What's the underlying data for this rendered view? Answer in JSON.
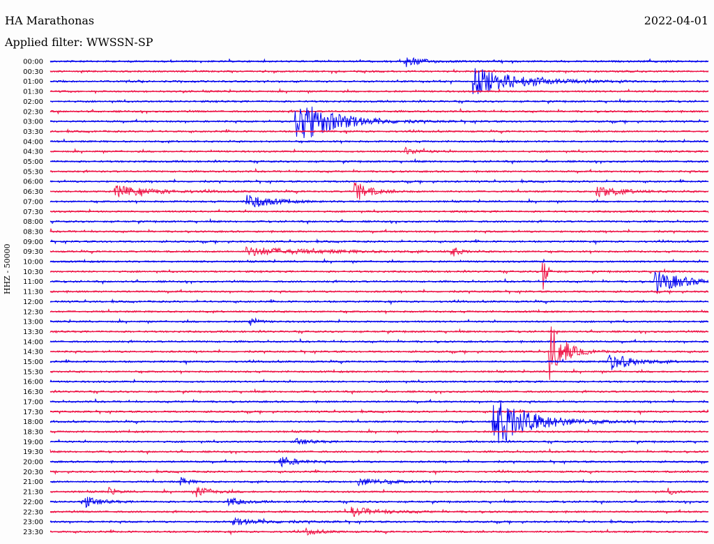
{
  "header": {
    "station": "HA Marathonas",
    "date": "2022-04-01",
    "filter": "Applied filter: WWSSN-SP"
  },
  "chart_data": {
    "type": "line",
    "subtype": "helicorder",
    "ylabel": "HHZ - 50000",
    "colors": {
      "even_rows": "#0000ee",
      "odd_rows": "#ee1144",
      "background": "#fdfdfd"
    },
    "rows": [
      "00:00",
      "00:30",
      "01:00",
      "01:30",
      "02:00",
      "02:30",
      "03:00",
      "03:30",
      "04:00",
      "04:30",
      "05:00",
      "05:30",
      "06:00",
      "06:30",
      "07:00",
      "07:30",
      "08:00",
      "08:30",
      "09:00",
      "09:30",
      "10:00",
      "10:30",
      "11:00",
      "11:30",
      "12:00",
      "12:30",
      "13:00",
      "13:30",
      "14:00",
      "14:30",
      "15:00",
      "15:30",
      "16:00",
      "16:30",
      "17:00",
      "17:30",
      "18:00",
      "18:30",
      "19:00",
      "19:30",
      "20:00",
      "20:30",
      "21:00",
      "21:30",
      "22:00",
      "22:30",
      "23:00",
      "23:30"
    ],
    "x_range_minutes": [
      0,
      30
    ],
    "events": [
      {
        "row": 0,
        "t": 0.54,
        "amp": 9,
        "dur": 0.02
      },
      {
        "row": 2,
        "t": 0.645,
        "amp": 20,
        "dur": 0.06
      },
      {
        "row": 6,
        "t": 0.375,
        "amp": 35,
        "dur": 0.05
      },
      {
        "row": 9,
        "t": 0.54,
        "amp": 5,
        "dur": 0.02
      },
      {
        "row": 13,
        "t": 0.1,
        "amp": 8,
        "dur": 0.05
      },
      {
        "row": 13,
        "t": 0.465,
        "amp": 14,
        "dur": 0.02
      },
      {
        "row": 13,
        "t": 0.83,
        "amp": 10,
        "dur": 0.03
      },
      {
        "row": 14,
        "t": 0.3,
        "amp": 12,
        "dur": 0.03
      },
      {
        "row": 19,
        "t": 0.3,
        "amp": 6,
        "dur": 0.09
      },
      {
        "row": 19,
        "t": 0.61,
        "amp": 9,
        "dur": 0.01
      },
      {
        "row": 21,
        "t": 0.75,
        "amp": 25,
        "dur": 0.005
      },
      {
        "row": 22,
        "t": 0.92,
        "amp": 16,
        "dur": 0.04
      },
      {
        "row": 26,
        "t": 0.305,
        "amp": 6,
        "dur": 0.01
      },
      {
        "row": 29,
        "t": 0.76,
        "amp": 40,
        "dur": 0.02
      },
      {
        "row": 30,
        "t": 0.85,
        "amp": 14,
        "dur": 0.03
      },
      {
        "row": 36,
        "t": 0.675,
        "amp": 38,
        "dur": 0.05
      },
      {
        "row": 38,
        "t": 0.375,
        "amp": 4,
        "dur": 0.02
      },
      {
        "row": 40,
        "t": 0.35,
        "amp": 9,
        "dur": 0.02
      },
      {
        "row": 42,
        "t": 0.2,
        "amp": 6,
        "dur": 0.01
      },
      {
        "row": 42,
        "t": 0.47,
        "amp": 5,
        "dur": 0.04
      },
      {
        "row": 43,
        "t": 0.09,
        "amp": 5,
        "dur": 0.01
      },
      {
        "row": 43,
        "t": 0.225,
        "amp": 7,
        "dur": 0.02
      },
      {
        "row": 43,
        "t": 0.94,
        "amp": 4,
        "dur": 0.01
      },
      {
        "row": 44,
        "t": 0.05,
        "amp": 9,
        "dur": 0.02
      },
      {
        "row": 44,
        "t": 0.27,
        "amp": 6,
        "dur": 0.02
      },
      {
        "row": 45,
        "t": 0.46,
        "amp": 6,
        "dur": 0.04
      },
      {
        "row": 46,
        "t": 0.28,
        "amp": 4,
        "dur": 0.05
      },
      {
        "row": 47,
        "t": 0.39,
        "amp": 4,
        "dur": 0.02
      }
    ]
  }
}
